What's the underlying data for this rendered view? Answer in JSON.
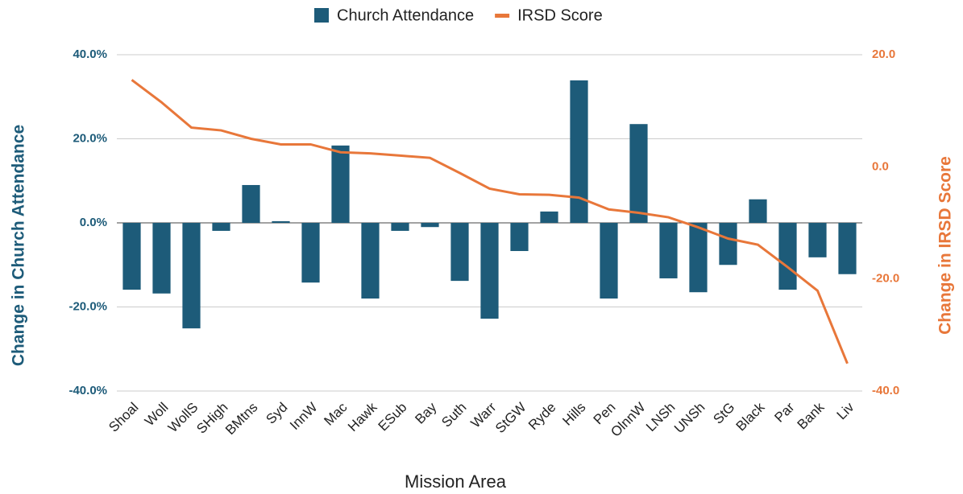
{
  "chart_data": {
    "type": "bar",
    "x_label": "Mission Area",
    "y_label": "Change in Church Attendance",
    "y2_label": "Change in IRSD Score",
    "legend": "top",
    "grid": true,
    "categories": [
      "Shoal",
      "Woll",
      "WollS",
      "SHigh",
      "BMtns",
      "Syd",
      "InnW",
      "Mac",
      "Hawk",
      "ESub",
      "Bay",
      "Suth",
      "Warr",
      "StGW",
      "Ryde",
      "Hills",
      "Pen",
      "OlnnW",
      "LNSh",
      "UNSh",
      "StG",
      "Black",
      "Par",
      "Bank",
      "Liv"
    ],
    "series": [
      {
        "name": "Church Attendance",
        "type": "bar",
        "color": "#1d5b79",
        "axis": "y",
        "values": [
          -15.9,
          -16.8,
          -25.1,
          -1.9,
          9.0,
          0.4,
          -14.2,
          18.4,
          -18.0,
          -1.9,
          -1.0,
          -13.8,
          -22.8,
          -6.7,
          2.7,
          33.9,
          -18.0,
          23.5,
          -13.2,
          -16.5,
          -10.0,
          5.6,
          -15.9,
          -8.2,
          -12.2
        ]
      },
      {
        "name": "IRSD Score",
        "type": "line",
        "color": "#e8773a",
        "axis": "y2",
        "values": [
          15.5,
          11.5,
          7.0,
          6.5,
          5.0,
          4.0,
          4.0,
          2.6,
          2.4,
          2.0,
          1.6,
          -1.1,
          -3.9,
          -4.9,
          -5.0,
          -5.5,
          -7.6,
          -8.2,
          -9.0,
          -10.8,
          -12.8,
          -13.9,
          -17.9,
          -22.1,
          -35.1
        ]
      }
    ],
    "ylim": [
      -40,
      40
    ],
    "yticks": [
      {
        "value": -40,
        "label": "-40.0%"
      },
      {
        "value": -20,
        "label": "-20.0%"
      },
      {
        "value": 0,
        "label": "0.0%"
      },
      {
        "value": 20,
        "label": "20.0%"
      },
      {
        "value": 40,
        "label": "40.0%"
      }
    ],
    "y2lim": [
      -40,
      20
    ],
    "y2ticks": [
      {
        "value": -40,
        "label": "-40.0"
      },
      {
        "value": -20,
        "label": "-20.0"
      },
      {
        "value": 0,
        "label": "0.0"
      },
      {
        "value": 20,
        "label": "20.0"
      }
    ]
  }
}
